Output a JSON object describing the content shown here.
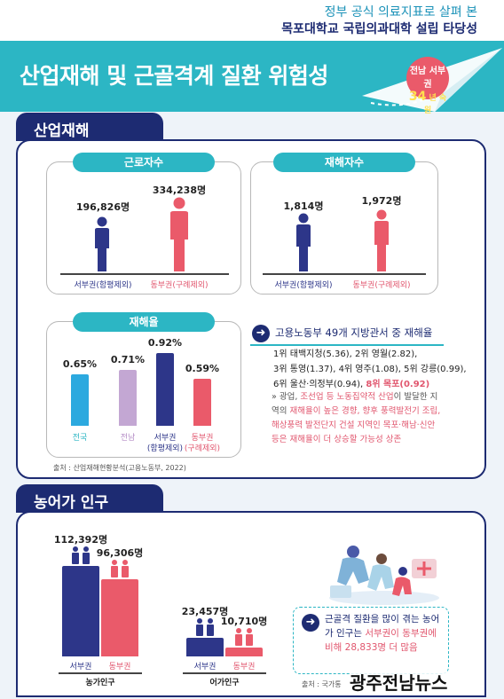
{
  "header": {
    "subtitle": "정부 공식 의료지표로 살펴 본",
    "title": "목포대학교 국립의과대학 설립 타당성",
    "banner_title": "산업재해 및 근골격계 질환 위험성",
    "badge_line1": "전남 서부권",
    "badge_num": "34",
    "badge_suffix": "년 숙원"
  },
  "industrial": {
    "tab_label": "산업재해",
    "workers": {
      "title": "근로자수",
      "left": {
        "value": "196,826명",
        "label": "서부권(함평제외)"
      },
      "right": {
        "value": "334,238명",
        "label": "동부권(구례제외)"
      }
    },
    "victims": {
      "title": "재해자수",
      "left": {
        "value": "1,814명",
        "label": "서부권(함평제외)"
      },
      "right": {
        "value": "1,972명",
        "label": "동부권(구례제외)"
      }
    },
    "rate": {
      "title": "재해율",
      "bars": [
        {
          "value": "0.65%",
          "label1": "전국",
          "label2": "",
          "pct": 0.65,
          "color": "#2ca9df"
        },
        {
          "value": "0.71%",
          "label1": "전남",
          "label2": "",
          "pct": 0.71,
          "color": "#c3a7d3"
        },
        {
          "value": "0.92%",
          "label1": "서부권",
          "label2": "(함평제외)",
          "pct": 0.92,
          "color": "#2d3689"
        },
        {
          "value": "0.59%",
          "label1": "동부권",
          "label2": "(구례제외)",
          "pct": 0.59,
          "color": "#ea5a6a"
        }
      ]
    },
    "ranking": {
      "heading": "고용노동부 49개 지방관서 중 재해율",
      "line1": "1위 태백지청(5.36), 2위 영월(2.82),",
      "line2": "3위 통영(1.37), 4위 영주(1.08), 5위 강릉(0.99),",
      "line3a": "6위 울산·의정부(0.94), ",
      "line3b": "8위 목포(0.92)",
      "note_a": "광업, ",
      "note_b": "조선업 등 노동집약적 산업",
      "note_c": "이 발달한 지역의 ",
      "note_d": "재해율이 높은 경향, 향후 풍력발전기 조립, 해상풍력 발전단지 건설 지역인 목포·해남·신안 등은 재해율이 더 상승할 가능성 상존"
    },
    "source": "출처 : 산업재해현황분석(고용노동부, 2022)"
  },
  "farming": {
    "tab_label": "농어가 인구",
    "farm": {
      "title": "농가인구",
      "left": {
        "value": "112,392명",
        "label": "서부권",
        "n": 112392
      },
      "right": {
        "value": "96,306명",
        "label": "동부권",
        "n": 96306
      }
    },
    "fish": {
      "title": "어가인구",
      "left": {
        "value": "23,457명",
        "label": "서부권",
        "n": 23457
      },
      "right": {
        "value": "10,710명",
        "label": "동부권",
        "n": 10710
      }
    },
    "callout_a": "근골격 질환을 많이 겪는 농어가 인구는 ",
    "callout_b": "서부권이 동부권에 비해 28,833명 더 많음",
    "source": "출처 : 국가통"
  },
  "watermark": "광주전남뉴스",
  "colors": {
    "navy": "#1d2b72",
    "teal": "#2cb6c4",
    "pink": "#ea5a6a",
    "west": "#2d3689"
  }
}
